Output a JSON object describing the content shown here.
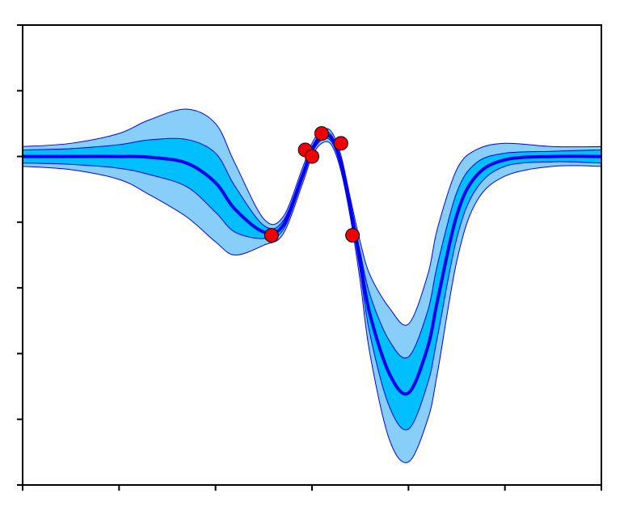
{
  "chart_data": {
    "type": "line",
    "title": "",
    "xlabel": "",
    "ylabel": "",
    "xlim": [
      0,
      6
    ],
    "ylim": [
      -5,
      2
    ],
    "grid": false,
    "legend": null,
    "x_ticks": [
      0,
      1,
      2,
      3,
      4,
      5,
      6
    ],
    "y_ticks": [
      -5,
      -4,
      -3,
      -2,
      -1,
      0,
      1,
      2
    ],
    "tick_labels_shown": false,
    "colors": {
      "mean": "#0000ee",
      "band_inner": "#00bfff",
      "band_outer": "#87cefa",
      "band_edge": "#0000ee",
      "observations": "#ee0000",
      "axes": "#000000"
    },
    "series": [
      {
        "kind": "mean",
        "x": [
          0.0,
          0.5,
          1.0,
          1.3,
          1.7,
          2.0,
          2.2,
          2.5,
          2.7,
          2.9,
          3.0,
          3.1,
          3.2,
          3.3,
          3.4,
          3.5,
          3.6,
          3.8,
          4.0,
          4.2,
          4.3,
          4.5,
          4.7,
          5.0,
          5.5,
          6.0
        ],
        "y": [
          0.0,
          0.0,
          0.0,
          -0.01,
          -0.1,
          -0.4,
          -0.8,
          -1.15,
          -1.05,
          -0.3,
          0.1,
          0.3,
          0.28,
          -0.1,
          -0.8,
          -1.6,
          -2.4,
          -3.3,
          -3.6,
          -2.9,
          -2.2,
          -0.9,
          -0.3,
          -0.05,
          0.0,
          0.0
        ]
      },
      {
        "kind": "band_inner",
        "x": [
          0.0,
          0.5,
          1.0,
          1.3,
          1.7,
          2.0,
          2.2,
          2.5,
          2.7,
          2.9,
          3.0,
          3.1,
          3.2,
          3.3,
          3.4,
          3.5,
          3.6,
          3.8,
          4.0,
          4.2,
          4.3,
          4.5,
          4.7,
          5.0,
          5.5,
          6.0
        ],
        "upper": [
          0.1,
          0.12,
          0.18,
          0.25,
          0.26,
          0.05,
          -0.45,
          -1.05,
          -0.98,
          -0.24,
          0.15,
          0.35,
          0.33,
          -0.04,
          -0.72,
          -1.45,
          -2.1,
          -2.8,
          -3.05,
          -2.35,
          -1.65,
          -0.55,
          -0.1,
          0.05,
          0.08,
          0.1
        ],
        "lower": [
          -0.1,
          -0.12,
          -0.18,
          -0.27,
          -0.46,
          -0.85,
          -1.15,
          -1.25,
          -1.12,
          -0.36,
          0.05,
          0.25,
          0.23,
          -0.16,
          -0.88,
          -1.75,
          -2.7,
          -3.8,
          -4.15,
          -3.45,
          -2.75,
          -1.25,
          -0.5,
          -0.15,
          -0.08,
          -0.1
        ]
      },
      {
        "kind": "band_outer",
        "x": [
          0.0,
          0.5,
          1.0,
          1.3,
          1.7,
          2.0,
          2.2,
          2.5,
          2.7,
          2.9,
          3.0,
          3.1,
          3.2,
          3.3,
          3.4,
          3.5,
          3.6,
          3.8,
          4.0,
          4.2,
          4.3,
          4.5,
          4.7,
          5.0,
          5.5,
          6.0
        ],
        "upper": [
          0.15,
          0.2,
          0.35,
          0.55,
          0.72,
          0.5,
          -0.1,
          -0.95,
          -0.92,
          -0.18,
          0.2,
          0.4,
          0.38,
          0.02,
          -0.65,
          -1.3,
          -1.8,
          -2.3,
          -2.55,
          -1.8,
          -1.1,
          -0.2,
          0.1,
          0.2,
          0.15,
          0.15
        ],
        "lower": [
          -0.15,
          -0.2,
          -0.35,
          -0.57,
          -0.92,
          -1.3,
          -1.5,
          -1.35,
          -1.18,
          -0.42,
          0.0,
          0.2,
          0.18,
          -0.22,
          -0.95,
          -1.9,
          -3.0,
          -4.3,
          -4.65,
          -4.0,
          -3.3,
          -1.6,
          -0.7,
          -0.3,
          -0.15,
          -0.15
        ]
      },
      {
        "kind": "observations",
        "x": [
          2.58,
          2.93,
          3.0,
          3.1,
          3.3,
          3.42
        ],
        "y": [
          -1.2,
          0.1,
          0.0,
          0.35,
          0.2,
          -1.2
        ]
      }
    ]
  }
}
